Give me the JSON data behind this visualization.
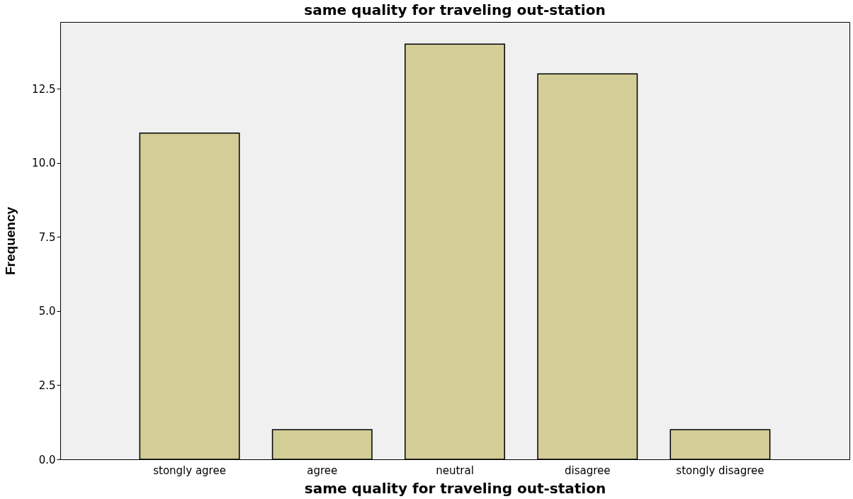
{
  "chart_data": {
    "type": "bar",
    "title": "same quality for traveling out-station",
    "xlabel": "same quality for traveling out-station",
    "ylabel": "Frequency",
    "categories": [
      "stongly agree",
      "agree",
      "neutral",
      "disagree",
      "stongly disagree"
    ],
    "values": [
      11,
      1,
      14,
      13,
      1
    ],
    "color": "#d3cd98",
    "ylim": [
      0,
      14.75
    ],
    "yticks": [
      {
        "value": 0,
        "label": "0.0"
      },
      2.5,
      {
        "value": 5,
        "label": "5.0"
      },
      7.5,
      {
        "value": 10,
        "label": "10.0"
      },
      12.5
    ],
    "grid": false
  }
}
